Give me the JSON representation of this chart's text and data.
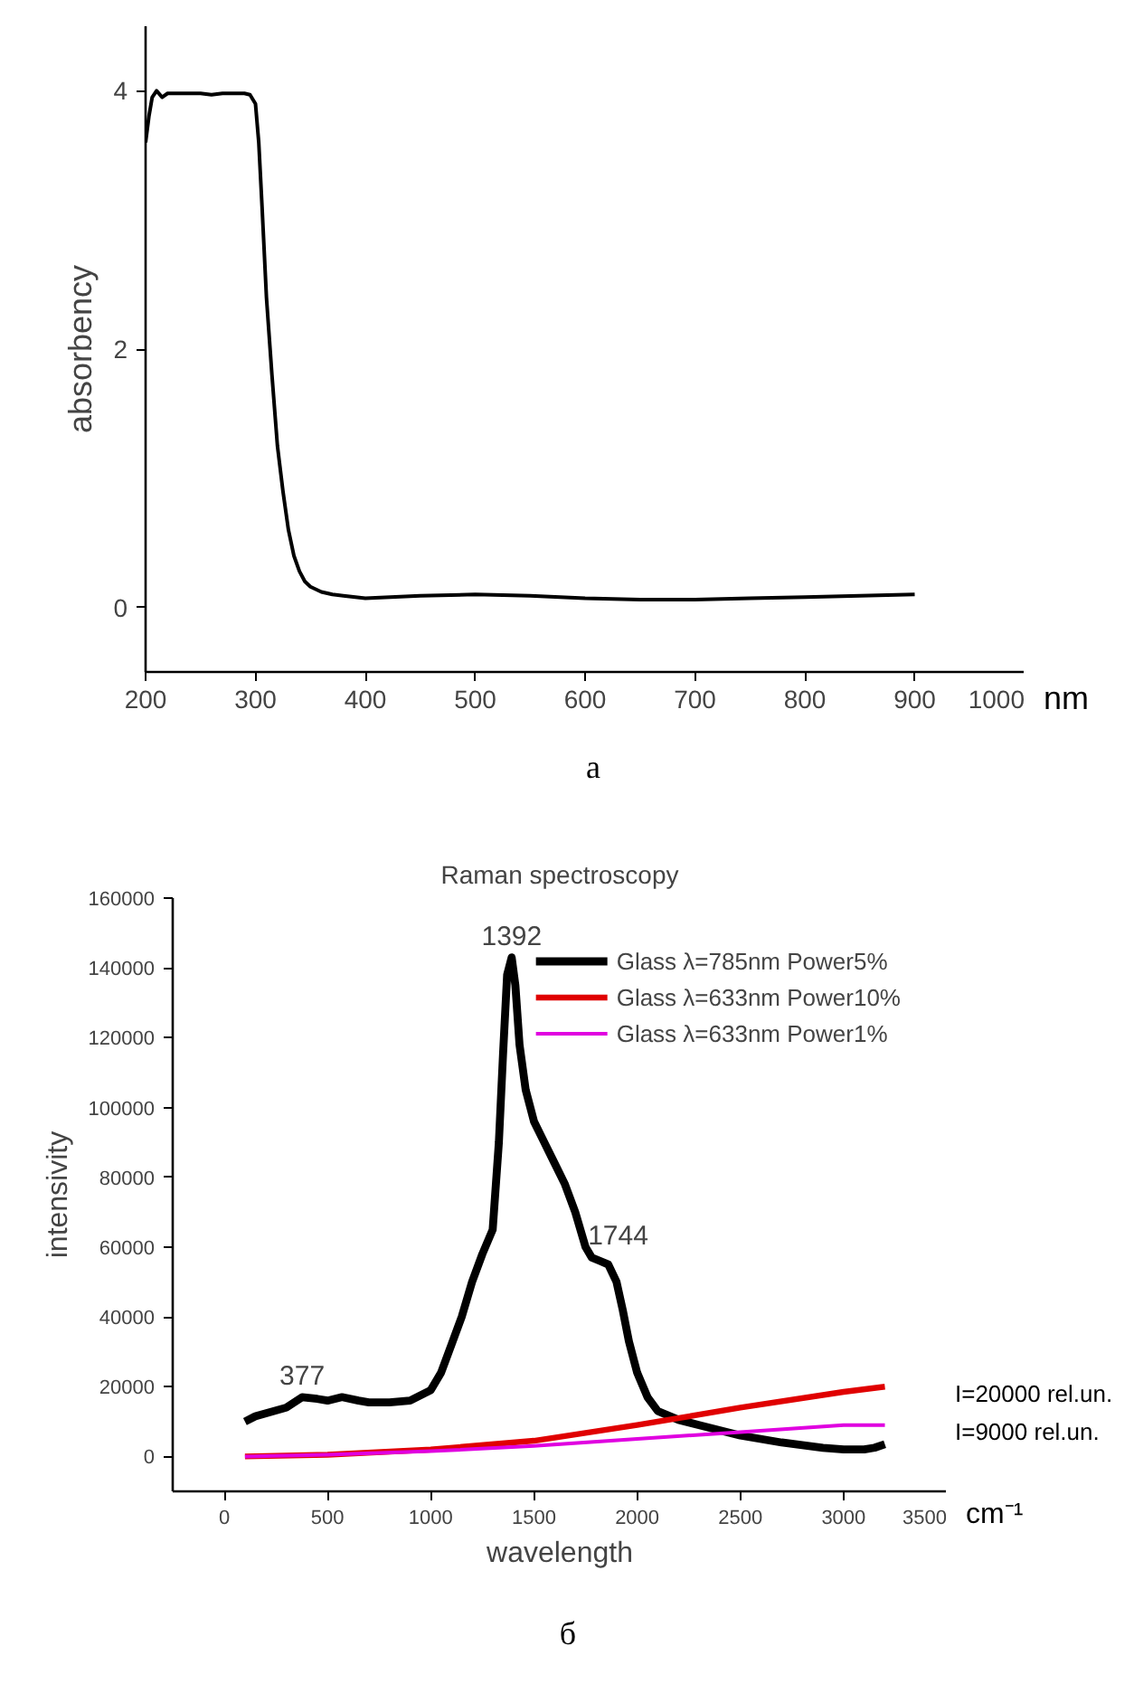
{
  "chart_data": [
    {
      "type": "line",
      "ylabel": "absorbency",
      "xlabel": "nm",
      "annotations": [
        "а"
      ],
      "xlim": [
        200,
        1000
      ],
      "ylim": [
        -0.5,
        4.5
      ],
      "xticks": [
        200,
        300,
        400,
        500,
        600,
        700,
        800,
        900,
        1000
      ],
      "yticks": [
        0,
        2,
        4
      ],
      "grid": false,
      "legend": false,
      "series": [
        {
          "color": "#000000",
          "x": [
            200,
            203,
            206,
            210,
            215,
            220,
            230,
            240,
            250,
            260,
            270,
            280,
            290,
            295,
            300,
            303,
            306,
            310,
            315,
            320,
            325,
            330,
            335,
            340,
            345,
            350,
            360,
            370,
            380,
            400,
            450,
            500,
            550,
            600,
            650,
            700,
            750,
            800,
            850,
            900
          ],
          "values": [
            3.6,
            3.8,
            3.95,
            4.0,
            3.95,
            3.98,
            3.98,
            3.98,
            3.98,
            3.97,
            3.98,
            3.98,
            3.98,
            3.97,
            3.9,
            3.6,
            3.1,
            2.4,
            1.8,
            1.25,
            0.9,
            0.6,
            0.4,
            0.28,
            0.2,
            0.16,
            0.12,
            0.1,
            0.09,
            0.07,
            0.09,
            0.1,
            0.09,
            0.07,
            0.06,
            0.06,
            0.07,
            0.08,
            0.09,
            0.1
          ]
        }
      ]
    },
    {
      "type": "line",
      "title": "Raman spectroscopy",
      "ylabel": "intensivity",
      "xlabel": "wavelength",
      "annotations": [
        "cm⁻¹",
        "б",
        {
          "text": "377",
          "x": 377,
          "y": 17000
        },
        {
          "text": "1392",
          "x": 1392,
          "y": 143000
        },
        {
          "text": "1744",
          "x": 1744,
          "y": 57000
        },
        {
          "text": "I=20000 rel.un.",
          "x": 3200,
          "y": 20000
        },
        {
          "text": "I=9000 rel.un.",
          "x": 3200,
          "y": 9000
        }
      ],
      "xlim": [
        -250,
        3500
      ],
      "ylim": [
        -10000,
        160000
      ],
      "xticks": [
        0,
        500,
        1000,
        1500,
        2000,
        2500,
        3000,
        3500
      ],
      "yticks": [
        0,
        20000,
        40000,
        60000,
        80000,
        100000,
        120000,
        140000,
        160000
      ],
      "grid": false,
      "legend": "top right",
      "series": [
        {
          "name": "Glass λ=785nm Power5%",
          "color": "#000000",
          "x": [
            100,
            150,
            300,
            377,
            450,
            500,
            570,
            650,
            700,
            800,
            900,
            1000,
            1050,
            1100,
            1150,
            1200,
            1250,
            1300,
            1330,
            1350,
            1370,
            1392,
            1410,
            1430,
            1460,
            1500,
            1550,
            1600,
            1650,
            1700,
            1750,
            1780,
            1820,
            1860,
            1900,
            1930,
            1960,
            2000,
            2050,
            2100,
            2200,
            2300,
            2500,
            2700,
            2900,
            3000,
            3100,
            3150,
            3200
          ],
          "values": [
            10000,
            11500,
            14000,
            17000,
            16500,
            16000,
            17000,
            16000,
            15500,
            15500,
            16000,
            19000,
            24000,
            32000,
            40000,
            50000,
            58000,
            65000,
            90000,
            115000,
            138000,
            143000,
            135000,
            118000,
            105000,
            96000,
            90000,
            84000,
            78000,
            70000,
            60000,
            57000,
            56000,
            55000,
            50000,
            42000,
            33000,
            24000,
            17000,
            13000,
            10500,
            9000,
            6000,
            4000,
            2500,
            2000,
            2000,
            2500,
            3500
          ]
        },
        {
          "name": "Glass λ=633nm Power10%",
          "color": "#e00000",
          "x": [
            100,
            500,
            1000,
            1500,
            2000,
            2500,
            3000,
            3200
          ],
          "values": [
            0,
            500,
            2000,
            4500,
            9000,
            14000,
            18500,
            20000
          ]
        },
        {
          "name": "Glass λ=633nm Power1%",
          "color": "#e000e0",
          "x": [
            100,
            500,
            1000,
            1500,
            2000,
            2500,
            3000,
            3200
          ],
          "values": [
            0,
            500,
            1500,
            3000,
            5000,
            7000,
            9000,
            9000
          ]
        }
      ]
    }
  ]
}
